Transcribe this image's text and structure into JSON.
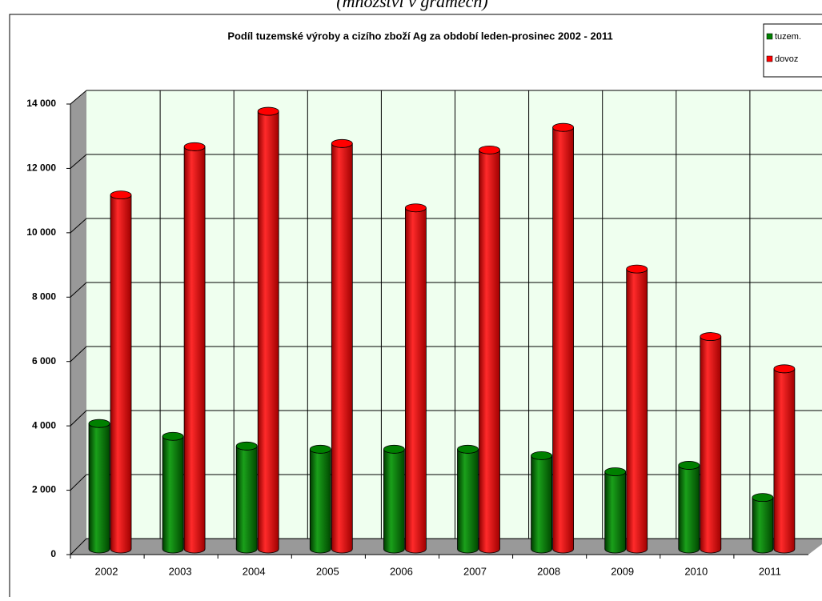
{
  "chart_data": {
    "type": "bar3d",
    "subtitle": "(množství v gramech)",
    "title": "Podíl tuzemské výroby a cizího zboží Ag za období leden-prosinec 2002 - 2011",
    "categories": [
      "2002",
      "2003",
      "2004",
      "2005",
      "2006",
      "2007",
      "2008",
      "2009",
      "2010",
      "2011"
    ],
    "series": [
      {
        "name": "tuzem.",
        "color": "#008000",
        "values": [
          3900,
          3500,
          3200,
          3100,
          3100,
          3100,
          2900,
          2400,
          2600,
          1600
        ]
      },
      {
        "name": "dovoz",
        "color": "#ff0000",
        "values": [
          11000,
          12500,
          13600,
          12600,
          10600,
          12400,
          13100,
          8700,
          6600,
          5600
        ]
      }
    ],
    "ylim": [
      0,
      14000
    ],
    "yticks": [
      0,
      {
        "value": 2000,
        "label": "2 000"
      },
      {
        "value": 4000,
        "label": "4 000"
      },
      {
        "value": 6000,
        "label": "6 000"
      },
      {
        "value": 8000,
        "label": "8 000"
      },
      {
        "value": 10000,
        "label": "10 000"
      },
      {
        "value": 12000,
        "label": "12 000"
      },
      {
        "value": 14000,
        "label": "14 000"
      }
    ],
    "grid": true,
    "legend": "top-right"
  }
}
